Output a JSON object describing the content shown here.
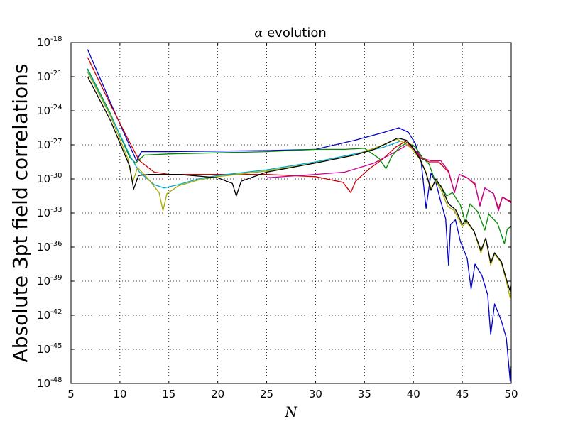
{
  "chart_data": {
    "type": "line",
    "title_symbol": "α",
    "title_rest": " evolution",
    "xlabel": "N",
    "ylabel": "Absolute 3pt field correlations",
    "xlim": [
      5,
      50
    ],
    "ylim_exp": [
      -48,
      -18
    ],
    "yscale": "log",
    "grid": true,
    "x_ticks": [
      "5",
      "10",
      "15",
      "20",
      "25",
      "30",
      "35",
      "40",
      "45",
      "50"
    ],
    "y_tick_base": "10",
    "y_tick_exps": [
      "-48",
      "-45",
      "-42",
      "-39",
      "-36",
      "-33",
      "-30",
      "-27",
      "-24",
      "-21",
      "-18"
    ],
    "series": [
      {
        "color": "#0000cc",
        "log10_points": [
          [
            6.7,
            -18.6
          ],
          [
            9,
            -23.2
          ],
          [
            11,
            -27.1
          ],
          [
            11.7,
            -28.4
          ],
          [
            12.2,
            -27.6
          ],
          [
            15,
            -27.6
          ],
          [
            25,
            -27.5
          ],
          [
            30,
            -27.4
          ],
          [
            34,
            -26.6
          ],
          [
            37,
            -25.9
          ],
          [
            38.5,
            -25.5
          ],
          [
            39.5,
            -25.9
          ],
          [
            40.2,
            -26.9
          ],
          [
            40.8,
            -28.5
          ],
          [
            41.3,
            -32.6
          ],
          [
            41.8,
            -29.5
          ],
          [
            42.3,
            -30.3
          ],
          [
            42.8,
            -32.0
          ],
          [
            43.3,
            -33.5
          ],
          [
            43.6,
            -37.6
          ],
          [
            43.8,
            -34.0
          ],
          [
            44.3,
            -33.6
          ],
          [
            44.8,
            -35.5
          ],
          [
            45.5,
            -37.0
          ],
          [
            45.9,
            -39.7
          ],
          [
            46.3,
            -37.5
          ],
          [
            47,
            -38.5
          ],
          [
            47.6,
            -40.2
          ],
          [
            47.9,
            -43.7
          ],
          [
            48.3,
            -41.0
          ],
          [
            49,
            -42.5
          ],
          [
            49.5,
            -44.0
          ],
          [
            49.9,
            -47.8
          ],
          [
            50,
            -46.5
          ]
        ]
      },
      {
        "color": "#cc0000",
        "log10_points": [
          [
            6.7,
            -19.3
          ],
          [
            9,
            -23.4
          ],
          [
            11,
            -26.8
          ],
          [
            12,
            -28.4
          ],
          [
            13.5,
            -29.4
          ],
          [
            15,
            -29.6
          ],
          [
            20,
            -29.6
          ],
          [
            25,
            -29.6
          ],
          [
            30,
            -29.8
          ],
          [
            32.8,
            -30.3
          ],
          [
            33.6,
            -31.2
          ],
          [
            34.1,
            -30.2
          ],
          [
            35.5,
            -29.1
          ],
          [
            36.8,
            -28.3
          ],
          [
            38.2,
            -27.2
          ],
          [
            39.2,
            -26.7
          ],
          [
            40,
            -27.3
          ],
          [
            40.8,
            -28.2
          ],
          [
            41.6,
            -28.5
          ],
          [
            42.6,
            -28.5
          ],
          [
            43.6,
            -29.4
          ],
          [
            44.2,
            -31.2
          ],
          [
            44.7,
            -29.6
          ],
          [
            45.5,
            -29.9
          ],
          [
            46.3,
            -30.5
          ],
          [
            46.8,
            -32.3
          ],
          [
            47.3,
            -30.8
          ],
          [
            48.2,
            -31.3
          ],
          [
            48.7,
            -32.6
          ],
          [
            49.1,
            -31.6
          ],
          [
            50,
            -32.0
          ]
        ]
      },
      {
        "color": "#cc0099",
        "log10_points": [
          [
            25,
            -29.9
          ],
          [
            30,
            -29.6
          ],
          [
            33,
            -29.4
          ],
          [
            36,
            -28.6
          ],
          [
            38.2,
            -27.6
          ],
          [
            39.4,
            -27.0
          ],
          [
            40.2,
            -27.5
          ],
          [
            41,
            -28.2
          ],
          [
            41.8,
            -28.4
          ],
          [
            42.8,
            -28.4
          ],
          [
            43.6,
            -29.3
          ],
          [
            44.2,
            -31.2
          ],
          [
            44.7,
            -29.6
          ],
          [
            45.5,
            -29.9
          ],
          [
            46.3,
            -30.4
          ],
          [
            46.8,
            -32.4
          ],
          [
            47.3,
            -30.8
          ],
          [
            48.2,
            -31.3
          ],
          [
            48.7,
            -32.8
          ],
          [
            49.1,
            -31.6
          ],
          [
            50,
            -32.1
          ]
        ]
      },
      {
        "color": "#008800",
        "log10_points": [
          [
            6.7,
            -20.3
          ],
          [
            9,
            -24.2
          ],
          [
            11,
            -28.1
          ],
          [
            11.6,
            -28.6
          ],
          [
            12.5,
            -27.9
          ],
          [
            15,
            -27.8
          ],
          [
            20,
            -27.7
          ],
          [
            25,
            -27.6
          ],
          [
            30,
            -27.4
          ],
          [
            33,
            -27.4
          ],
          [
            35,
            -27.3
          ],
          [
            36.5,
            -28.2
          ],
          [
            37.2,
            -29.1
          ],
          [
            37.8,
            -28.0
          ],
          [
            38.6,
            -27.2
          ],
          [
            39.4,
            -26.8
          ],
          [
            40.2,
            -27.2
          ],
          [
            41,
            -28.2
          ],
          [
            41.6,
            -28.7
          ],
          [
            42.2,
            -30.1
          ],
          [
            42.8,
            -30.6
          ],
          [
            43.4,
            -31.5
          ],
          [
            44,
            -31.2
          ],
          [
            44.8,
            -32.3
          ],
          [
            45.3,
            -33.8
          ],
          [
            45.8,
            -32.2
          ],
          [
            46.6,
            -32.9
          ],
          [
            47.3,
            -34.5
          ],
          [
            47.7,
            -33.1
          ],
          [
            48.6,
            -33.9
          ],
          [
            49.3,
            -35.7
          ],
          [
            49.6,
            -34.4
          ],
          [
            50,
            -34.2
          ]
        ]
      },
      {
        "color": "#00aacc",
        "log10_points": [
          [
            6.7,
            -20.4
          ],
          [
            9,
            -24.3
          ],
          [
            11,
            -27.9
          ],
          [
            12,
            -29.4
          ],
          [
            13.5,
            -30.5
          ],
          [
            14.5,
            -30.8
          ],
          [
            16,
            -30.5
          ],
          [
            18,
            -30.0
          ],
          [
            20,
            -29.7
          ],
          [
            25,
            -29.2
          ],
          [
            30,
            -28.5
          ],
          [
            34,
            -27.8
          ],
          [
            37,
            -27.2
          ],
          [
            38.6,
            -26.7
          ]
        ]
      },
      {
        "color": "#aaaa00",
        "log10_points": [
          [
            6.7,
            -20.6
          ],
          [
            9,
            -24.4
          ],
          [
            10.8,
            -28.2
          ],
          [
            11.3,
            -30.3
          ],
          [
            11.8,
            -29.0
          ],
          [
            13,
            -30.1
          ],
          [
            14,
            -31.2
          ],
          [
            14.4,
            -32.8
          ],
          [
            14.8,
            -31.3
          ],
          [
            16,
            -30.6
          ],
          [
            18,
            -30.1
          ],
          [
            20,
            -29.8
          ],
          [
            25,
            -29.3
          ],
          [
            30,
            -28.6
          ],
          [
            34,
            -27.9
          ],
          [
            36,
            -27.3
          ],
          [
            38.3,
            -26.5
          ],
          [
            39,
            -26.8
          ],
          [
            39.8,
            -27.3
          ],
          [
            40.6,
            -28.2
          ],
          [
            41.2,
            -29.2
          ],
          [
            41.8,
            -30.8
          ],
          [
            42.3,
            -30.2
          ],
          [
            42.8,
            -30.9
          ],
          [
            43.5,
            -32.4
          ],
          [
            44.2,
            -32.8
          ],
          [
            45,
            -34.2
          ],
          [
            45.4,
            -33.8
          ],
          [
            46.2,
            -34.6
          ],
          [
            46.9,
            -36.5
          ],
          [
            47.4,
            -35.2
          ],
          [
            47.9,
            -37.6
          ],
          [
            48.3,
            -36.6
          ],
          [
            49,
            -37.4
          ],
          [
            49.5,
            -39.0
          ],
          [
            49.9,
            -40.5
          ],
          [
            50,
            -39.8
          ]
        ]
      },
      {
        "color": "#000000",
        "log10_points": [
          [
            6.7,
            -21.0
          ],
          [
            9,
            -24.8
          ],
          [
            11,
            -28.9
          ],
          [
            11.4,
            -30.9
          ],
          [
            11.9,
            -29.7
          ],
          [
            13,
            -29.6
          ],
          [
            16,
            -29.6
          ],
          [
            20,
            -29.9
          ],
          [
            21.5,
            -30.4
          ],
          [
            21.9,
            -31.5
          ],
          [
            22.4,
            -30.2
          ],
          [
            25,
            -29.4
          ],
          [
            30,
            -28.6
          ],
          [
            34,
            -27.9
          ],
          [
            36,
            -27.4
          ],
          [
            38.4,
            -26.4
          ],
          [
            39.3,
            -26.6
          ],
          [
            40,
            -27.3
          ],
          [
            40.7,
            -28.3
          ],
          [
            41.3,
            -29.5
          ],
          [
            41.8,
            -31.0
          ],
          [
            42.3,
            -30.0
          ],
          [
            42.9,
            -30.8
          ],
          [
            43.6,
            -32.2
          ],
          [
            44.3,
            -32.7
          ],
          [
            45,
            -34.0
          ],
          [
            45.4,
            -33.6
          ],
          [
            46.2,
            -34.6
          ],
          [
            46.9,
            -36.3
          ],
          [
            47.4,
            -35.2
          ],
          [
            47.9,
            -37.4
          ],
          [
            48.3,
            -36.5
          ],
          [
            49,
            -37.3
          ],
          [
            49.5,
            -38.8
          ],
          [
            49.9,
            -39.9
          ],
          [
            50,
            -39.4
          ]
        ]
      }
    ]
  }
}
